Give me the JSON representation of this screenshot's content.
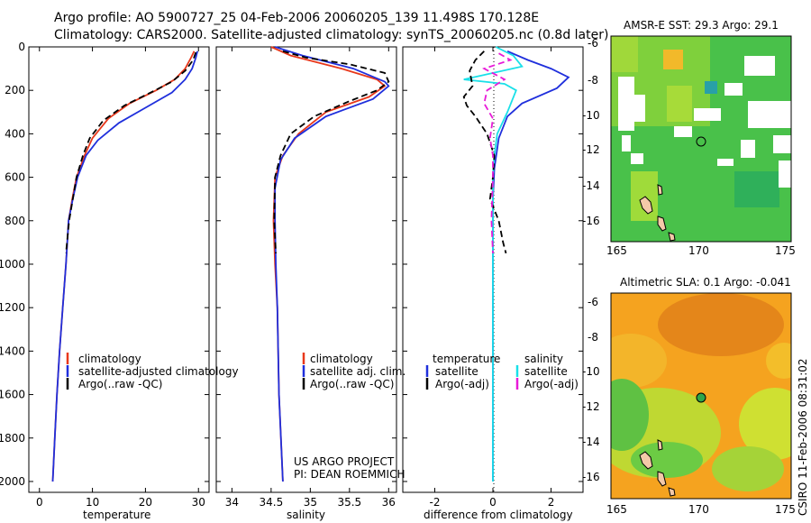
{
  "title_line1": "Argo profile: AO 5900727_25 04-Feb-2006 20060205_139 11.498S 170.128E",
  "title_line2": "Climatology: CARS2000. Satellite-adjusted climatology: synTS_20060205.nc (0.8d later)",
  "colors": {
    "red": "#e8381b",
    "blue": "#1f2fdc",
    "black": "#000000",
    "cyan": "#19e0e8",
    "magenta": "#e81ad8"
  },
  "chart_data": [
    {
      "type": "line",
      "id": "temperature",
      "xlabel": "temperature",
      "xlim": [
        -2,
        32
      ],
      "ylim": [
        2050,
        0
      ],
      "xticks": [
        0,
        10,
        20,
        30
      ],
      "yticks": [
        0,
        200,
        400,
        600,
        800,
        1000,
        1200,
        1400,
        1600,
        1800,
        2000
      ],
      "series": [
        {
          "name": "climatology",
          "color": "red",
          "dash": "",
          "points": [
            [
              29.2,
              20
            ],
            [
              28.6,
              50
            ],
            [
              27.5,
              100
            ],
            [
              25.5,
              150
            ],
            [
              22,
              200
            ],
            [
              17,
              260
            ],
            [
              13,
              330
            ],
            [
              10,
              420
            ],
            [
              8.5,
              500
            ],
            [
              7,
              600
            ],
            [
              6.2,
              700
            ],
            [
              5.5,
              800
            ],
            [
              5,
              1000
            ],
            [
              4.4,
              1200
            ],
            [
              3.8,
              1400
            ],
            [
              3.3,
              1600
            ],
            [
              2.9,
              1800
            ],
            [
              2.5,
              2000
            ]
          ]
        },
        {
          "name": "satellite-adjusted climatology",
          "color": "blue",
          "dash": "",
          "points": [
            [
              29.8,
              20
            ],
            [
              29.5,
              50
            ],
            [
              28.8,
              100
            ],
            [
              27.5,
              150
            ],
            [
              25,
              210
            ],
            [
              20,
              280
            ],
            [
              15,
              350
            ],
            [
              11,
              430
            ],
            [
              8.8,
              500
            ],
            [
              7.2,
              600
            ],
            [
              6.3,
              700
            ],
            [
              5.5,
              800
            ],
            [
              5,
              1000
            ],
            [
              4.4,
              1200
            ],
            [
              3.8,
              1400
            ],
            [
              3.3,
              1600
            ],
            [
              2.9,
              1800
            ],
            [
              2.5,
              2000
            ]
          ]
        },
        {
          "name": "Argo(..raw -QC)",
          "color": "black",
          "dash": "7,4",
          "points": [
            [
              29.5,
              25
            ],
            [
              29,
              60
            ],
            [
              27.5,
              110
            ],
            [
              25,
              160
            ],
            [
              21,
              210
            ],
            [
              16,
              270
            ],
            [
              12,
              340
            ],
            [
              9.5,
              420
            ],
            [
              8.2,
              500
            ],
            [
              7,
              600
            ],
            [
              6.3,
              700
            ],
            [
              5.6,
              800
            ],
            [
              5,
              950
            ]
          ]
        }
      ],
      "legend": [
        "climatology",
        "satellite-adjusted climatology",
        "Argo(..raw -QC)"
      ]
    },
    {
      "type": "line",
      "id": "salinity",
      "xlabel": "salinity",
      "xlim": [
        33.8,
        36.1
      ],
      "ylim": [
        2050,
        0
      ],
      "xticks": [
        34,
        34.5,
        35,
        35.5,
        36
      ],
      "series": [
        {
          "name": "climatology",
          "color": "red",
          "dash": "",
          "points": [
            [
              34.5,
              0
            ],
            [
              34.75,
              40
            ],
            [
              35.4,
              100
            ],
            [
              35.85,
              150
            ],
            [
              35.95,
              180
            ],
            [
              35.75,
              230
            ],
            [
              35.2,
              300
            ],
            [
              34.85,
              400
            ],
            [
              34.65,
              500
            ],
            [
              34.55,
              600
            ],
            [
              34.53,
              800
            ],
            [
              34.55,
              1000
            ],
            [
              34.58,
              1200
            ],
            [
              34.6,
              1600
            ],
            [
              34.65,
              2000
            ]
          ]
        },
        {
          "name": "satellite adj. clim.",
          "color": "blue",
          "dash": "",
          "points": [
            [
              34.55,
              0
            ],
            [
              34.9,
              40
            ],
            [
              35.55,
              100
            ],
            [
              35.95,
              160
            ],
            [
              36.0,
              180
            ],
            [
              35.8,
              240
            ],
            [
              35.2,
              320
            ],
            [
              34.8,
              420
            ],
            [
              34.62,
              520
            ],
            [
              34.55,
              650
            ],
            [
              34.55,
              800
            ],
            [
              34.56,
              1000
            ],
            [
              34.58,
              1200
            ],
            [
              34.6,
              1600
            ],
            [
              34.65,
              2000
            ]
          ]
        },
        {
          "name": "Argo(..raw -QC)",
          "color": "black",
          "dash": "7,4",
          "points": [
            [
              34.65,
              20
            ],
            [
              34.95,
              50
            ],
            [
              35.5,
              80
            ],
            [
              35.95,
              120
            ],
            [
              36.0,
              160
            ],
            [
              35.85,
              200
            ],
            [
              35.5,
              250
            ],
            [
              35.05,
              320
            ],
            [
              34.75,
              400
            ],
            [
              34.62,
              500
            ],
            [
              34.55,
              600
            ],
            [
              34.54,
              800
            ],
            [
              34.56,
              950
            ]
          ]
        }
      ],
      "legend": [
        "climatology",
        "satellite adj. clim.",
        "Argo(..raw -QC)"
      ]
    },
    {
      "type": "line",
      "id": "difference",
      "xlabel": "difference from climatology",
      "xlim": [
        -3.1,
        3.1
      ],
      "ylim": [
        2050,
        0
      ],
      "xticks": [
        -2,
        0,
        2
      ],
      "series": [
        {
          "name": "temperature satellite",
          "color": "blue",
          "dash": "",
          "points": [
            [
              0.5,
              20
            ],
            [
              1.2,
              60
            ],
            [
              2,
              100
            ],
            [
              2.6,
              140
            ],
            [
              2.2,
              190
            ],
            [
              1,
              260
            ],
            [
              0.5,
              320
            ],
            [
              0.2,
              420
            ],
            [
              0.05,
              560
            ],
            [
              0,
              700
            ],
            [
              0,
              2000
            ]
          ]
        },
        {
          "name": "salinity satellite",
          "color": "cyan",
          "dash": "",
          "points": [
            [
              0.1,
              0
            ],
            [
              0.7,
              40
            ],
            [
              1.0,
              90
            ],
            [
              -1.0,
              150
            ],
            [
              0.4,
              170
            ],
            [
              0.8,
              200
            ],
            [
              0.5,
              300
            ],
            [
              0.15,
              400
            ],
            [
              0.05,
              500
            ],
            [
              0,
              600
            ],
            [
              0,
              2000
            ]
          ]
        },
        {
          "name": "temperature Argo(-adj)",
          "color": "black",
          "dash": "7,4",
          "points": [
            [
              -0.3,
              20
            ],
            [
              -0.6,
              60
            ],
            [
              -0.8,
              110
            ],
            [
              -0.7,
              180
            ],
            [
              -1.0,
              230
            ],
            [
              -0.9,
              270
            ],
            [
              -0.6,
              320
            ],
            [
              -0.2,
              400
            ],
            [
              0.05,
              500
            ],
            [
              0,
              600
            ],
            [
              -0.1,
              700
            ],
            [
              0.2,
              800
            ],
            [
              0.35,
              900
            ],
            [
              0.45,
              950
            ]
          ]
        },
        {
          "name": "salinity Argo(-adj)",
          "color": "magenta",
          "dash": "7,4",
          "points": [
            [
              0.2,
              30
            ],
            [
              0.6,
              60
            ],
            [
              -0.3,
              100
            ],
            [
              0.4,
              150
            ],
            [
              -0.2,
              200
            ],
            [
              -0.3,
              260
            ],
            [
              0,
              330
            ],
            [
              -0.1,
              420
            ],
            [
              0,
              500
            ],
            [
              0,
              600
            ],
            [
              -0.05,
              800
            ],
            [
              0,
              950
            ]
          ]
        }
      ],
      "legend_headers": [
        "temperature",
        "salinity"
      ],
      "legend": [
        "satellite",
        "Argo(-adj)",
        "satellite",
        "Argo(-adj)"
      ]
    }
  ],
  "panels": {
    "xlabels": [
      "temperature",
      "salinity",
      "difference from climatology"
    ]
  },
  "maps": [
    {
      "title": "AMSR-E SST: 29.3 Argo: 29.1",
      "xticks": [
        "165",
        "170",
        "175"
      ],
      "yticks": [
        "-6",
        "-8",
        "-10",
        "-12",
        "-14",
        "-16"
      ]
    },
    {
      "title": "Altimetric SLA: 0.1 Argo: -0.041",
      "xticks": [
        "165",
        "170",
        "175"
      ],
      "yticks": [
        "-6",
        "-8",
        "-10",
        "-12",
        "-14",
        "-16"
      ]
    }
  ],
  "project": {
    "line1": "US ARGO PROJECT",
    "line2": "PI: DEAN ROEMMICH"
  },
  "timestamp": "CSIRO 11-Feb-2006 08:31:02"
}
